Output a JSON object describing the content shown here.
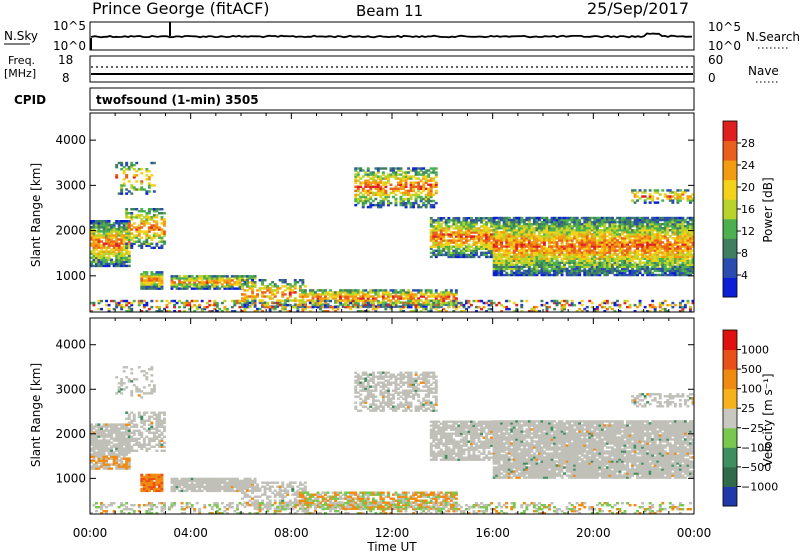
{
  "header": {
    "station": "Prince George (fitACF)",
    "beam": "Beam 11",
    "date": "25/Sep/2017"
  },
  "noise_panel": {
    "left_label": "N.Sky",
    "right_label": "N.Search",
    "y_ticks_left": [
      "10^5",
      "10^0"
    ],
    "y_ticks_right": [
      "10^5",
      "10^0"
    ]
  },
  "freq_panel": {
    "left_label_1": "Freq.",
    "left_label_2": "[MHz]",
    "right_label": "Nave",
    "y_ticks_left": [
      "18",
      "8"
    ],
    "y_ticks_right": [
      "60",
      "0"
    ]
  },
  "cpid_panel": {
    "label": "CPID",
    "text": "twofsound (1-min) 3505"
  },
  "colors": {
    "power_scale": [
      "#0a1fd6",
      "#2a4cb0",
      "#3f7f5f",
      "#4caf50",
      "#b9d32a",
      "#f5d21a",
      "#f39c12",
      "#e8601c",
      "#e02020"
    ],
    "velocity_scale": [
      "#1f3aa8",
      "#2e6b4a",
      "#3f8e5f",
      "#78c850",
      "#c8c8c0",
      "#f5b21a",
      "#f08a10",
      "#e85018",
      "#e01010"
    ],
    "ground_scatter": "#c0c0b8"
  },
  "chart_data": [
    {
      "type": "heatmap",
      "name": "power",
      "ylabel": "Slant Range [km]",
      "xlabel": "Time UT",
      "ylim": [
        200,
        4600
      ],
      "y_ticks": [
        "1000",
        "2000",
        "3000",
        "4000"
      ],
      "x_ticks": [
        "00:00",
        "04:00",
        "08:00",
        "12:00",
        "16:00",
        "20:00",
        "00:00"
      ],
      "colorbar_label": "Power [dB]",
      "colorbar_ticks": [
        "4",
        "8",
        "12",
        "16",
        "20",
        "24",
        "28"
      ],
      "colorbar_range": [
        0,
        30
      ]
    },
    {
      "type": "heatmap",
      "name": "velocity",
      "ylabel": "Slant Range [km]",
      "xlabel": "Time UT",
      "ylim": [
        200,
        4600
      ],
      "y_ticks": [
        "1000",
        "2000",
        "3000",
        "4000"
      ],
      "x_ticks": [
        "00:00",
        "04:00",
        "08:00",
        "12:00",
        "16:00",
        "20:00",
        "00:00"
      ],
      "colorbar_label": "Velocity [m s⁻¹]",
      "colorbar_ticks": [
        "1000",
        "500",
        "100",
        "25",
        "−25",
        "−100",
        "−500",
        "−1000"
      ]
    }
  ]
}
